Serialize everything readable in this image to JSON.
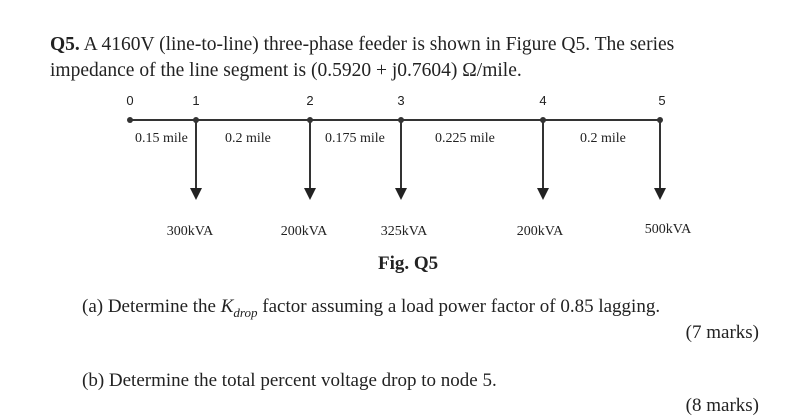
{
  "question": {
    "number": "Q5.",
    "line1": "A 4160V (line-to-line) three-phase feeder is shown in Figure Q5. The series",
    "line2": "impedance of the line segment is (0.5920 + j0.7604) Ω/mile."
  },
  "figure": {
    "caption": "Fig. Q5",
    "nodes": [
      "0",
      "1",
      "2",
      "3",
      "4",
      "5"
    ],
    "segments": [
      "0.15 mile",
      "0.2 mile",
      "0.175 mile",
      "0.225 mile",
      "0.2 mile"
    ],
    "loads": [
      "300kVA",
      "200kVA",
      "325kVA",
      "200kVA",
      "500kVA"
    ]
  },
  "parts": {
    "a_prefix": "(a) Determine the ",
    "a_k": "K",
    "a_sub": "drop",
    "a_suffix": " factor assuming a load power factor of 0.85 lagging.",
    "a_marks": "(7 marks)",
    "b_text": "(b) Determine the total percent voltage drop to node 5.",
    "b_marks": "(8 marks)"
  }
}
